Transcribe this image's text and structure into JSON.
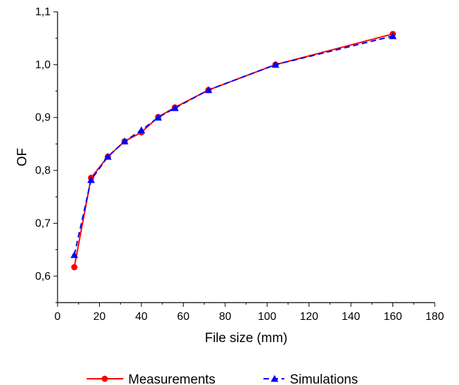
{
  "chart_data": {
    "type": "line",
    "title": "",
    "xlabel": "File size (mm)",
    "ylabel": "OF",
    "xlim": [
      0,
      180
    ],
    "ylim": [
      0.55,
      1.1
    ],
    "x_ticks": [
      0,
      20,
      40,
      60,
      80,
      100,
      120,
      140,
      160,
      180
    ],
    "x_tick_labels": [
      "0",
      "20",
      "40",
      "60",
      "80",
      "100",
      "120",
      "140",
      "160",
      "180"
    ],
    "y_ticks": [
      0.6,
      0.7,
      0.8,
      0.9,
      1.0,
      1.1
    ],
    "y_tick_labels": [
      "0,6",
      "0,7",
      "0,8",
      "0,9",
      "1,0",
      "1,1"
    ],
    "grid": false,
    "legend_position": "bottom",
    "series": [
      {
        "name": "Measurements",
        "color": "#ff0000",
        "line_style": "solid",
        "marker": "circle",
        "x": [
          8,
          16,
          24,
          32,
          40,
          48,
          56,
          72,
          104,
          160
        ],
        "y": [
          0.617,
          0.786,
          0.826,
          0.855,
          0.872,
          0.901,
          0.919,
          0.952,
          1.0,
          1.058
        ]
      },
      {
        "name": "Simulations",
        "color": "#0000ff",
        "line_style": "dashed",
        "marker": "triangle",
        "x": [
          8,
          16,
          24,
          32,
          40,
          48,
          56,
          72,
          104,
          160
        ],
        "y": [
          0.64,
          0.782,
          0.826,
          0.855,
          0.876,
          0.9,
          0.918,
          0.952,
          1.0,
          1.054
        ]
      }
    ]
  }
}
